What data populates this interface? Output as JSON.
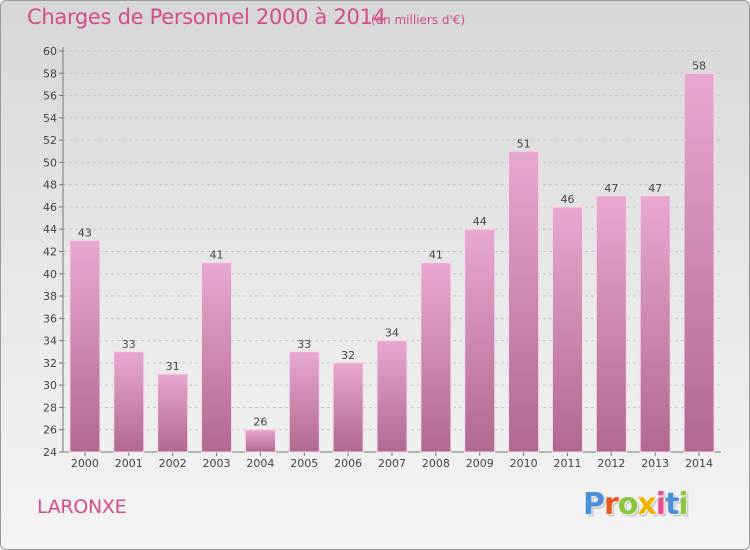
{
  "header": {
    "title": "Charges de Personnel 2000 à 2014",
    "subtitle": "(en milliers d'€)"
  },
  "footer": {
    "place": "LARONXE",
    "logo_text": "Proxiti"
  },
  "colors": {
    "title": "#d44c8c",
    "bar_top": "#e8a8cf",
    "bar_bottom": "#b06890",
    "logo": [
      "#4a8fd8",
      "#e8581c",
      "#8cc63f",
      "#f0b400",
      "#e84c8c",
      "#4a8fd8",
      "#8cc63f"
    ]
  },
  "chart_data": {
    "type": "bar",
    "categories": [
      "2000",
      "2001",
      "2002",
      "2003",
      "2004",
      "2005",
      "2006",
      "2007",
      "2008",
      "2009",
      "2010",
      "2011",
      "2012",
      "2013",
      "2014"
    ],
    "values": [
      43,
      33,
      31,
      41,
      26,
      33,
      32,
      34,
      41,
      44,
      51,
      46,
      47,
      47,
      58
    ],
    "ylim": [
      24,
      60
    ],
    "yticks": [
      24,
      26,
      28,
      30,
      32,
      34,
      36,
      38,
      40,
      42,
      44,
      46,
      48,
      50,
      52,
      54,
      56,
      58,
      60
    ],
    "grid": true,
    "data_labels": true
  }
}
